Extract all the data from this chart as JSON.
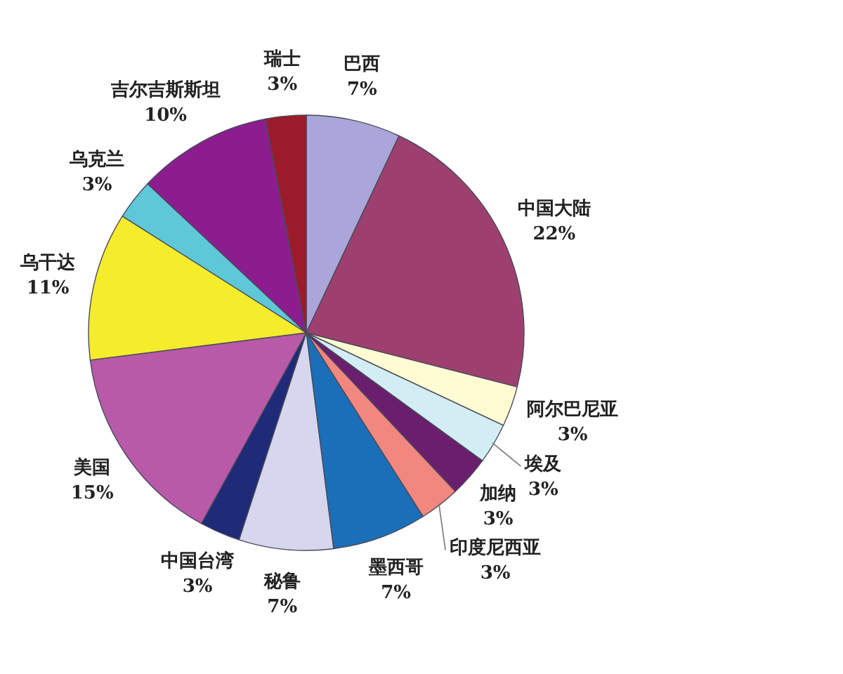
{
  "chart_data": {
    "type": "pie",
    "categories": [
      "巴西",
      "中国大陆",
      "阿尔巴尼亚",
      "埃及",
      "加纳",
      "印度尼西亚",
      "墨西哥",
      "秘鲁",
      "中国台湾",
      "美国",
      "乌干达",
      "乌克兰",
      "吉尔吉斯斯坦",
      "瑞士"
    ],
    "values": [
      7,
      22,
      3,
      3,
      3,
      3,
      7,
      7,
      3,
      15,
      11,
      3,
      10,
      3
    ],
    "value_labels": [
      "7%",
      "22%",
      "3%",
      "3%",
      "3%",
      "3%",
      "7%",
      "7%",
      "3%",
      "15%",
      "11%",
      "3%",
      "10%",
      "3%"
    ],
    "colors": [
      "#aaa6da",
      "#9e406f",
      "#fffbd2",
      "#d2eef4",
      "#6a1f6e",
      "#f2877f",
      "#1b6fb8",
      "#d6d6ee",
      "#1f2a78",
      "#b95aa9",
      "#f5ec2c",
      "#5ec8d8",
      "#8b1d8e",
      "#9c1b2b"
    ]
  }
}
